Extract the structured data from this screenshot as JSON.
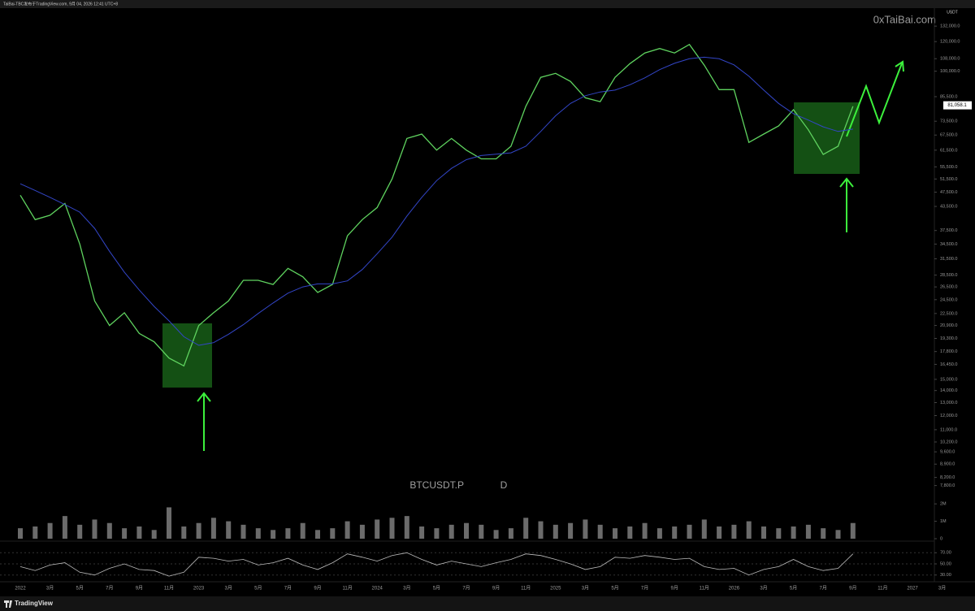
{
  "header": {
    "publisher": "TaiBai-TBC发布于TradingView.com, 9月 04, 2026 12:41 UTC+8",
    "watermark": "0xTaiBai.com",
    "currency": "USDT"
  },
  "footer": {
    "brand": "TradingView"
  },
  "chart_data": [
    {
      "type": "line",
      "title": "BTCUSDT.P",
      "interval": "D",
      "log_scale": true,
      "categories": [
        "2022",
        null,
        "3月",
        null,
        "5月",
        null,
        "7月",
        null,
        "9月",
        null,
        "11月",
        null,
        "2023",
        null,
        "3月",
        null,
        "5月",
        null,
        "7月",
        null,
        "9月",
        null,
        "11月",
        null,
        "2024",
        null,
        "3月",
        null,
        "5月",
        null,
        "7月",
        null,
        "9月",
        null,
        "11月",
        null,
        "2025",
        null,
        "3月",
        null,
        "5月",
        null,
        "7月",
        null,
        "9月",
        null,
        "11月",
        null,
        "2026",
        null,
        "3月",
        null,
        "5月",
        null,
        "7月",
        null,
        "9月",
        null,
        "11月",
        null,
        "2027",
        null,
        "3月",
        null
      ],
      "series": [
        {
          "color": "#5fd35f",
          "values": [
            46600,
            40100,
            41200,
            44300,
            34500,
            24300,
            20900,
            22600,
            19900,
            18900,
            17100,
            16300,
            20900,
            22600,
            24300,
            27600,
            27600,
            26900,
            29700,
            28200,
            25600,
            26900,
            36300,
            40100,
            43200,
            51500,
            66100,
            67900,
            61500,
            66100,
            61500,
            58300,
            58300,
            63000,
            80600,
            96300,
            98700,
            93900,
            84900,
            82900,
            96300,
            104800,
            111900,
            115000,
            111900,
            117900,
            103800,
            89300,
            89300,
            64500,
            67900,
            71400,
            78900,
            69700,
            59900,
            63000,
            80600,
            null,
            null,
            null,
            null,
            null,
            null,
            null
          ]
        },
        {
          "color": "#3346c8",
          "values": [
            50000,
            48000,
            46000,
            44000,
            42000,
            38000,
            33000,
            29000,
            26000,
            23500,
            21500,
            19500,
            18500,
            18800,
            19800,
            21000,
            22500,
            24000,
            25500,
            26500,
            27000,
            27000,
            27500,
            29500,
            32500,
            36000,
            41000,
            46000,
            51000,
            55000,
            58000,
            59500,
            60000,
            60500,
            63000,
            69000,
            76000,
            82000,
            86000,
            88000,
            89000,
            92000,
            96000,
            101000,
            105000,
            108000,
            109000,
            108000,
            104000,
            97000,
            89000,
            82000,
            77000,
            74000,
            71000,
            69000,
            70000,
            null,
            null,
            null,
            null,
            null,
            null,
            null
          ]
        }
      ],
      "last_price": {
        "value": 81058.1,
        "label": "81,058.1"
      },
      "ylim": [
        7150,
        146000
      ],
      "yticks": [
        {
          "value": 132000,
          "label": "132,000.0"
        },
        {
          "value": 120000,
          "label": "120,000.0"
        },
        {
          "value": 108000,
          "label": "108,000.0"
        },
        {
          "value": 100000,
          "label": "100,000.0"
        },
        {
          "value": 85500,
          "label": "85,500.0"
        },
        {
          "value": 73500,
          "label": "73,500.0"
        },
        {
          "value": 67500,
          "label": "67,500.0"
        },
        {
          "value": 61500,
          "label": "61,500.0"
        },
        {
          "value": 55500,
          "label": "55,500.0"
        },
        {
          "value": 51500,
          "label": "51,500.0"
        },
        {
          "value": 47500,
          "label": "47,500.0"
        },
        {
          "value": 43500,
          "label": "43,500.0"
        },
        {
          "value": 37500,
          "label": "37,500.0"
        },
        {
          "value": 34500,
          "label": "34,500.0"
        },
        {
          "value": 31500,
          "label": "31,500.0"
        },
        {
          "value": 28500,
          "label": "28,500.0"
        },
        {
          "value": 26500,
          "label": "26,500.0"
        },
        {
          "value": 24500,
          "label": "24,500.0"
        },
        {
          "value": 22500,
          "label": "22,500.0"
        },
        {
          "value": 20900,
          "label": "20,900.0"
        },
        {
          "value": 19300,
          "label": "19,300.0"
        },
        {
          "value": 17800,
          "label": "17,800.0"
        },
        {
          "value": 16450,
          "label": "16,450.0"
        },
        {
          "value": 15000,
          "label": "15,000.0"
        },
        {
          "value": 14000,
          "label": "14,000.0"
        },
        {
          "value": 13000,
          "label": "13,000.0"
        },
        {
          "value": 12000,
          "label": "12,000.0"
        },
        {
          "value": 11000,
          "label": "11,000.0"
        },
        {
          "value": 10200,
          "label": "10,200.0"
        },
        {
          "value": 9600,
          "label": "9,600.0"
        },
        {
          "value": 8900,
          "label": "8,900.0"
        },
        {
          "value": 8200,
          "label": "8,200.0"
        },
        {
          "value": 7800,
          "label": "7,800.0"
        }
      ]
    },
    {
      "type": "bar",
      "color": "#6b6b6b",
      "values": [
        600000,
        700000,
        900000,
        1300000,
        800000,
        1100000,
        900000,
        600000,
        700000,
        500000,
        1800000,
        700000,
        900000,
        1200000,
        1000000,
        800000,
        600000,
        500000,
        600000,
        900000,
        500000,
        600000,
        1000000,
        800000,
        1100000,
        1200000,
        1300000,
        700000,
        600000,
        800000,
        900000,
        800000,
        500000,
        600000,
        1200000,
        1000000,
        800000,
        900000,
        1100000,
        800000,
        600000,
        700000,
        900000,
        600000,
        700000,
        800000,
        1100000,
        700000,
        800000,
        1000000,
        700000,
        600000,
        700000,
        800000,
        600000,
        500000,
        900000,
        null,
        null,
        null,
        null,
        null,
        null,
        null
      ],
      "ylim": [
        0,
        2100000
      ],
      "yticks": [
        0,
        {
          "value": 1000000,
          "label": "1M"
        },
        {
          "value": 2000000,
          "label": "2M"
        }
      ]
    },
    {
      "type": "line",
      "color": "#bdbdbd",
      "values": [
        45,
        38,
        48,
        52,
        35,
        30,
        42,
        50,
        40,
        38,
        28,
        35,
        62,
        60,
        55,
        58,
        48,
        52,
        60,
        48,
        40,
        52,
        68,
        62,
        55,
        65,
        70,
        58,
        48,
        55,
        50,
        45,
        52,
        58,
        68,
        65,
        58,
        50,
        40,
        45,
        62,
        60,
        65,
        62,
        58,
        60,
        45,
        40,
        42,
        30,
        40,
        45,
        58,
        45,
        38,
        42,
        68,
        null,
        null,
        null,
        null,
        null,
        null,
        null
      ],
      "ylim": [
        15,
        85
      ],
      "yticks": [
        {
          "value": 70,
          "label": "70.00"
        },
        {
          "value": 50,
          "label": "50.00"
        },
        {
          "value": 30,
          "label": "30.00"
        }
      ]
    }
  ]
}
